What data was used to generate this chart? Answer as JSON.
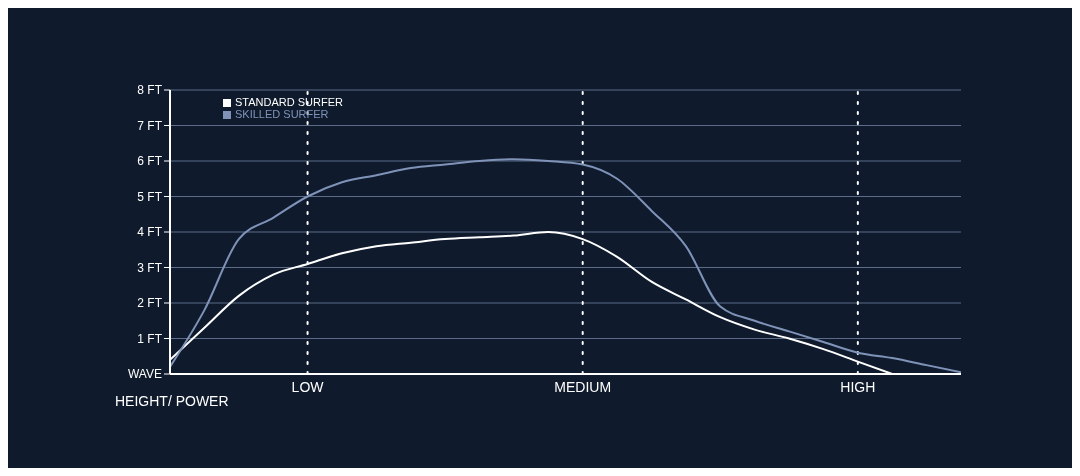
{
  "chart_data": {
    "type": "line",
    "xlabel": "HEIGHT/ POWER",
    "categories": [
      null,
      null,
      null,
      null,
      "LOW",
      null,
      null,
      null,
      null,
      null,
      null,
      null,
      "MEDIUM",
      null,
      null,
      null,
      null,
      null,
      null,
      null,
      "HIGH",
      null,
      null,
      null
    ],
    "ylim": [
      0,
      8
    ],
    "yticks": [
      {
        "value": 0,
        "label": "WAVE"
      },
      {
        "value": 1,
        "label": "1 FT"
      },
      {
        "value": 2,
        "label": "2 FT"
      },
      {
        "value": 3,
        "label": "3 FT"
      },
      {
        "value": 4,
        "label": "4 FT"
      },
      {
        "value": 5,
        "label": "5 FT"
      },
      {
        "value": 6,
        "label": "6 FT"
      },
      {
        "value": 7,
        "label": "7 FT"
      },
      {
        "value": 8,
        "label": "8 FT"
      }
    ],
    "grid": "y",
    "legend": "top left",
    "marker": "none",
    "line_style": "solid",
    "series": [
      {
        "name": "STANDARD SURFER",
        "color": "#ffffff",
        "values": [
          0.4,
          1.3,
          2.2,
          2.8,
          3.1,
          3.4,
          3.6,
          3.7,
          3.8,
          3.85,
          3.9,
          4.0,
          3.8,
          3.3,
          2.6,
          2.1,
          1.6,
          1.25,
          1.0,
          0.7,
          0.35,
          0,
          null,
          null
        ]
      },
      {
        "name": "SKILLED SURFER",
        "color": "#7f93b8",
        "values": [
          0.2,
          1.8,
          3.8,
          4.4,
          5.0,
          5.4,
          5.6,
          5.8,
          5.9,
          6.0,
          6.05,
          6.0,
          5.9,
          5.5,
          4.6,
          3.6,
          1.9,
          1.5,
          1.2,
          0.9,
          0.6,
          0.45,
          0.25,
          0.05
        ]
      }
    ],
    "ref_lines": [
      {
        "axis": "x",
        "value": "LOW",
        "color": "#ffffff",
        "line_style": "dotted"
      },
      {
        "axis": "x",
        "value": "MEDIUM",
        "color": "#ffffff",
        "line_style": "dotted"
      },
      {
        "axis": "x",
        "value": "HIGH",
        "color": "#ffffff",
        "line_style": "dotted"
      }
    ]
  }
}
